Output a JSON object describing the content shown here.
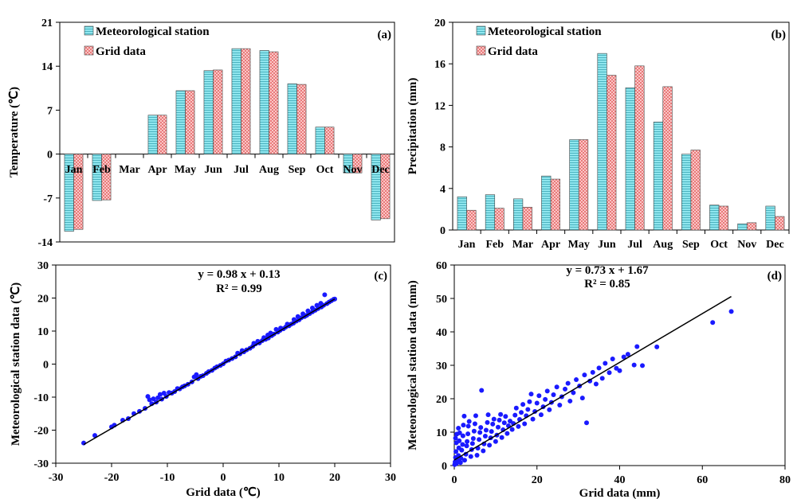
{
  "chart_data": [
    {
      "panel": "(a)",
      "type": "bar",
      "ylabel": "Temperature (℃)",
      "ylim": [
        -14,
        21
      ],
      "yticks": [
        -14,
        -7,
        0,
        7,
        14,
        21
      ],
      "categories": [
        "Jan",
        "Feb",
        "Mar",
        "Apr",
        "May",
        "Jun",
        "Jul",
        "Aug",
        "Sep",
        "Oct",
        "Nov",
        "Dec"
      ],
      "series": [
        {
          "name": "Meteorological station",
          "color": "#7fe0ea",
          "values": [
            -12.3,
            -7.4,
            0,
            6.2,
            10.1,
            13.3,
            16.8,
            16.5,
            11.2,
            4.3,
            -3.0,
            -10.5
          ]
        },
        {
          "name": "Grid data",
          "color": "#f4a0a0",
          "values": [
            -12.0,
            -7.3,
            0,
            6.2,
            10.1,
            13.4,
            16.8,
            16.3,
            11.1,
            4.3,
            -3.0,
            -10.3
          ]
        }
      ],
      "legend": "top-left"
    },
    {
      "panel": "(b)",
      "type": "bar",
      "ylabel": "Precipitation (mm)",
      "ylim": [
        0,
        20
      ],
      "yticks": [
        0,
        4,
        8,
        12,
        16,
        20
      ],
      "categories": [
        "Jan",
        "Feb",
        "Mar",
        "Apr",
        "May",
        "Jun",
        "Jul",
        "Aug",
        "Sep",
        "Oct",
        "Nov",
        "Dec"
      ],
      "series": [
        {
          "name": "Meteorological station",
          "color": "#7fe0ea",
          "values": [
            3.2,
            3.4,
            3.0,
            5.2,
            8.7,
            17.0,
            13.7,
            10.4,
            7.3,
            2.4,
            0.6,
            2.3
          ]
        },
        {
          "name": "Grid data",
          "color": "#f4a0a0",
          "values": [
            1.9,
            2.1,
            2.2,
            4.9,
            8.7,
            14.9,
            15.8,
            13.8,
            7.7,
            2.3,
            0.7,
            1.3
          ]
        }
      ],
      "legend": "top-left"
    },
    {
      "panel": "(c)",
      "type": "scatter",
      "xlabel": "Grid data (℃)",
      "ylabel": "Meteorological station data (℃)",
      "xlim": [
        -30,
        30
      ],
      "ylim": [
        -30,
        30
      ],
      "xticks": [
        -30,
        -20,
        -10,
        0,
        10,
        20,
        30
      ],
      "yticks": [
        -30,
        -20,
        -10,
        0,
        10,
        20,
        30
      ],
      "equation": "y = 0.98 x + 0.13",
      "r2": "R² = 0.99",
      "fit": {
        "slope": 0.98,
        "intercept": 0.13,
        "xrange": [
          -25,
          20
        ]
      },
      "point_color": "#1a1aff",
      "points": [
        [
          -25,
          -23.9
        ],
        [
          -23,
          -21.6
        ],
        [
          -20,
          -19
        ],
        [
          -19.5,
          -18.5
        ],
        [
          -18,
          -17
        ],
        [
          -17,
          -16.5
        ],
        [
          -16,
          -15
        ],
        [
          -15,
          -14.3
        ],
        [
          -14,
          -13.4
        ],
        [
          -13.5,
          -9.8
        ],
        [
          -13.2,
          -10.8
        ],
        [
          -12.8,
          -12
        ],
        [
          -12.5,
          -10.5
        ],
        [
          -12,
          -11.5
        ],
        [
          -11.7,
          -10.2
        ],
        [
          -11.3,
          -9.2
        ],
        [
          -11,
          -10.6
        ],
        [
          -10.6,
          -8.8
        ],
        [
          -10.2,
          -9.8
        ],
        [
          -9.7,
          -8.6
        ],
        [
          -9.2,
          -8.8
        ],
        [
          -8.7,
          -8.3
        ],
        [
          -8.2,
          -7.4
        ],
        [
          -7.8,
          -7.5
        ],
        [
          -7.3,
          -6.9
        ],
        [
          -6.9,
          -6.6
        ],
        [
          -6.3,
          -6.1
        ],
        [
          -5.6,
          -5.4
        ],
        [
          -5.2,
          -3.9
        ],
        [
          -4.8,
          -3.2
        ],
        [
          -4.5,
          -4.4
        ],
        [
          -4,
          -3.7
        ],
        [
          -3.6,
          -3.5
        ],
        [
          -3,
          -2.8
        ],
        [
          -2.6,
          -2.3
        ],
        [
          -2,
          -1.9
        ],
        [
          -1.5,
          -1.2
        ],
        [
          -1.1,
          -0.8
        ],
        [
          -0.5,
          -0.4
        ],
        [
          0,
          0.1
        ],
        [
          0.5,
          0.9
        ],
        [
          1,
          1.2
        ],
        [
          1.6,
          1.7
        ],
        [
          2.2,
          2.2
        ],
        [
          2.6,
          3.3
        ],
        [
          3,
          3.1
        ],
        [
          3.4,
          4.1
        ],
        [
          3.7,
          3.7
        ],
        [
          4.2,
          4.3
        ],
        [
          4.8,
          4.8
        ],
        [
          5.3,
          5.4
        ],
        [
          5.5,
          6.3
        ],
        [
          5.8,
          6.1
        ],
        [
          6.2,
          6.9
        ],
        [
          6.5,
          6.4
        ],
        [
          7,
          7.1
        ],
        [
          7.3,
          8
        ],
        [
          7.6,
          7.5
        ],
        [
          8,
          8.8
        ],
        [
          8.1,
          7.9
        ],
        [
          8.5,
          9.4
        ],
        [
          8.7,
          8.6
        ],
        [
          9.1,
          9.1
        ],
        [
          9.5,
          10.5
        ],
        [
          9.8,
          9.7
        ],
        [
          10.2,
          10.2
        ],
        [
          10.3,
          10.9
        ],
        [
          10.8,
          10.7
        ],
        [
          11.2,
          11.2
        ],
        [
          11.5,
          12.1
        ],
        [
          11.8,
          11.6
        ],
        [
          12.2,
          12.1
        ],
        [
          12.6,
          12.4
        ],
        [
          12.7,
          13.5
        ],
        [
          13.1,
          13
        ],
        [
          13.4,
          14.4
        ],
        [
          13.6,
          13.4
        ],
        [
          14,
          14
        ],
        [
          14.3,
          15.2
        ],
        [
          14.6,
          14.4
        ],
        [
          15,
          14.8
        ],
        [
          15.2,
          16.1
        ],
        [
          15.5,
          15.3
        ],
        [
          16,
          17
        ],
        [
          16,
          15.8
        ],
        [
          16.5,
          16.3
        ],
        [
          16.8,
          17.8
        ],
        [
          17,
          16.8
        ],
        [
          17.5,
          18.4
        ],
        [
          17.6,
          17.3
        ],
        [
          18,
          17.8
        ],
        [
          18.2,
          21
        ],
        [
          18.6,
          18.3
        ],
        [
          19,
          18.8
        ],
        [
          19.4,
          19.2
        ],
        [
          19.8,
          19.6
        ],
        [
          20,
          19.7
        ]
      ]
    },
    {
      "panel": "(d)",
      "type": "scatter",
      "xlabel": "Grid data (mm)",
      "ylabel": "Meteorological station data (mm)",
      "xlim": [
        0,
        80
      ],
      "ylim": [
        0,
        60
      ],
      "xticks": [
        0,
        20,
        40,
        60,
        80
      ],
      "yticks": [
        0,
        10,
        20,
        30,
        40,
        50,
        60
      ],
      "equation": "y = 0.73 x + 1.67",
      "r2": "R² = 0.85",
      "fit": {
        "slope": 0.73,
        "intercept": 1.67,
        "xrange": [
          0,
          67
        ]
      },
      "point_color": "#1a1aff",
      "points": [
        [
          0.1,
          0.3
        ],
        [
          0.2,
          1.1
        ],
        [
          0.3,
          2.4
        ],
        [
          0.4,
          4.2
        ],
        [
          0.5,
          6.8
        ],
        [
          0.3,
          8.2
        ],
        [
          0.6,
          9.4
        ],
        [
          0.5,
          0.6
        ],
        [
          0.8,
          1.5
        ],
        [
          1,
          3
        ],
        [
          1.1,
          5.3
        ],
        [
          1.2,
          7.4
        ],
        [
          1.3,
          9.8
        ],
        [
          1,
          11.2
        ],
        [
          1.5,
          0.9
        ],
        [
          1.6,
          2.2
        ],
        [
          1.8,
          4.6
        ],
        [
          2,
          6.3
        ],
        [
          2.1,
          8.9
        ],
        [
          2.2,
          12.1
        ],
        [
          2.4,
          14.8
        ],
        [
          2.5,
          1.6
        ],
        [
          2.8,
          3.4
        ],
        [
          3,
          5.9
        ],
        [
          3.1,
          7.2
        ],
        [
          3.3,
          9.5
        ],
        [
          3.4,
          11.8
        ],
        [
          3.6,
          13.2
        ],
        [
          4,
          2.7
        ],
        [
          4.2,
          4.8
        ],
        [
          4.4,
          6.6
        ],
        [
          4.6,
          8.1
        ],
        [
          4.8,
          10.3
        ],
        [
          5,
          12.5
        ],
        [
          5.2,
          14.9
        ],
        [
          5.5,
          3.1
        ],
        [
          5.7,
          5.2
        ],
        [
          6,
          7.8
        ],
        [
          6.2,
          9.9
        ],
        [
          6.4,
          11.4
        ],
        [
          6.6,
          22.5
        ],
        [
          7,
          4.4
        ],
        [
          7.2,
          6.5
        ],
        [
          7.5,
          8.8
        ],
        [
          7.7,
          10.6
        ],
        [
          8,
          12.9
        ],
        [
          8.2,
          15.2
        ],
        [
          8.5,
          6.1
        ],
        [
          8.8,
          8.3
        ],
        [
          9,
          10.2
        ],
        [
          9.3,
          12.4
        ],
        [
          9.6,
          13.9
        ],
        [
          10,
          7.2
        ],
        [
          10.3,
          9.1
        ],
        [
          10.6,
          11.5
        ],
        [
          10.9,
          13.6
        ],
        [
          11.2,
          15.3
        ],
        [
          11.5,
          8.4
        ],
        [
          11.8,
          10.7
        ],
        [
          12.1,
          12.8
        ],
        [
          12.4,
          14.7
        ],
        [
          12.8,
          9.6
        ],
        [
          13.1,
          11.9
        ],
        [
          13.5,
          13.3
        ],
        [
          14,
          10.8
        ],
        [
          14.3,
          12.6
        ],
        [
          14.7,
          15.1
        ],
        [
          15,
          17.2
        ],
        [
          15.5,
          11.7
        ],
        [
          15.8,
          13.8
        ],
        [
          16.2,
          15.9
        ],
        [
          16.6,
          18.3
        ],
        [
          17,
          12.5
        ],
        [
          17.4,
          14.9
        ],
        [
          17.8,
          16.8
        ],
        [
          18.2,
          19.1
        ],
        [
          18.6,
          21.4
        ],
        [
          19,
          13.9
        ],
        [
          19.5,
          16.2
        ],
        [
          20,
          18.7
        ],
        [
          20.5,
          20.9
        ],
        [
          21,
          15.2
        ],
        [
          21.5,
          17.6
        ],
        [
          22,
          19.8
        ],
        [
          22.5,
          22.3
        ],
        [
          23,
          16.7
        ],
        [
          23.5,
          18.9
        ],
        [
          24,
          21.2
        ],
        [
          24.8,
          23.5
        ],
        [
          25.5,
          18.1
        ],
        [
          26,
          20.6
        ],
        [
          26.8,
          22.9
        ],
        [
          27.5,
          24.6
        ],
        [
          28,
          19.3
        ],
        [
          28.8,
          21.8
        ],
        [
          29.5,
          25.7
        ],
        [
          30.3,
          23.8
        ],
        [
          31,
          20.2
        ],
        [
          31.5,
          27.1
        ],
        [
          32,
          12.8
        ],
        [
          32.8,
          25.3
        ],
        [
          33.5,
          27.9
        ],
        [
          34.3,
          24.4
        ],
        [
          35,
          29.2
        ],
        [
          35.8,
          26.1
        ],
        [
          36.5,
          30.6
        ],
        [
          37.5,
          27.8
        ],
        [
          38.3,
          31.9
        ],
        [
          39.2,
          29.1
        ],
        [
          40,
          28.4
        ],
        [
          41,
          32.5
        ],
        [
          42,
          33.3
        ],
        [
          43.5,
          30.1
        ],
        [
          44.2,
          35.6
        ],
        [
          45.5,
          29.9
        ],
        [
          49,
          35.5
        ],
        [
          62.5,
          42.8
        ],
        [
          67,
          46.1
        ]
      ]
    }
  ]
}
